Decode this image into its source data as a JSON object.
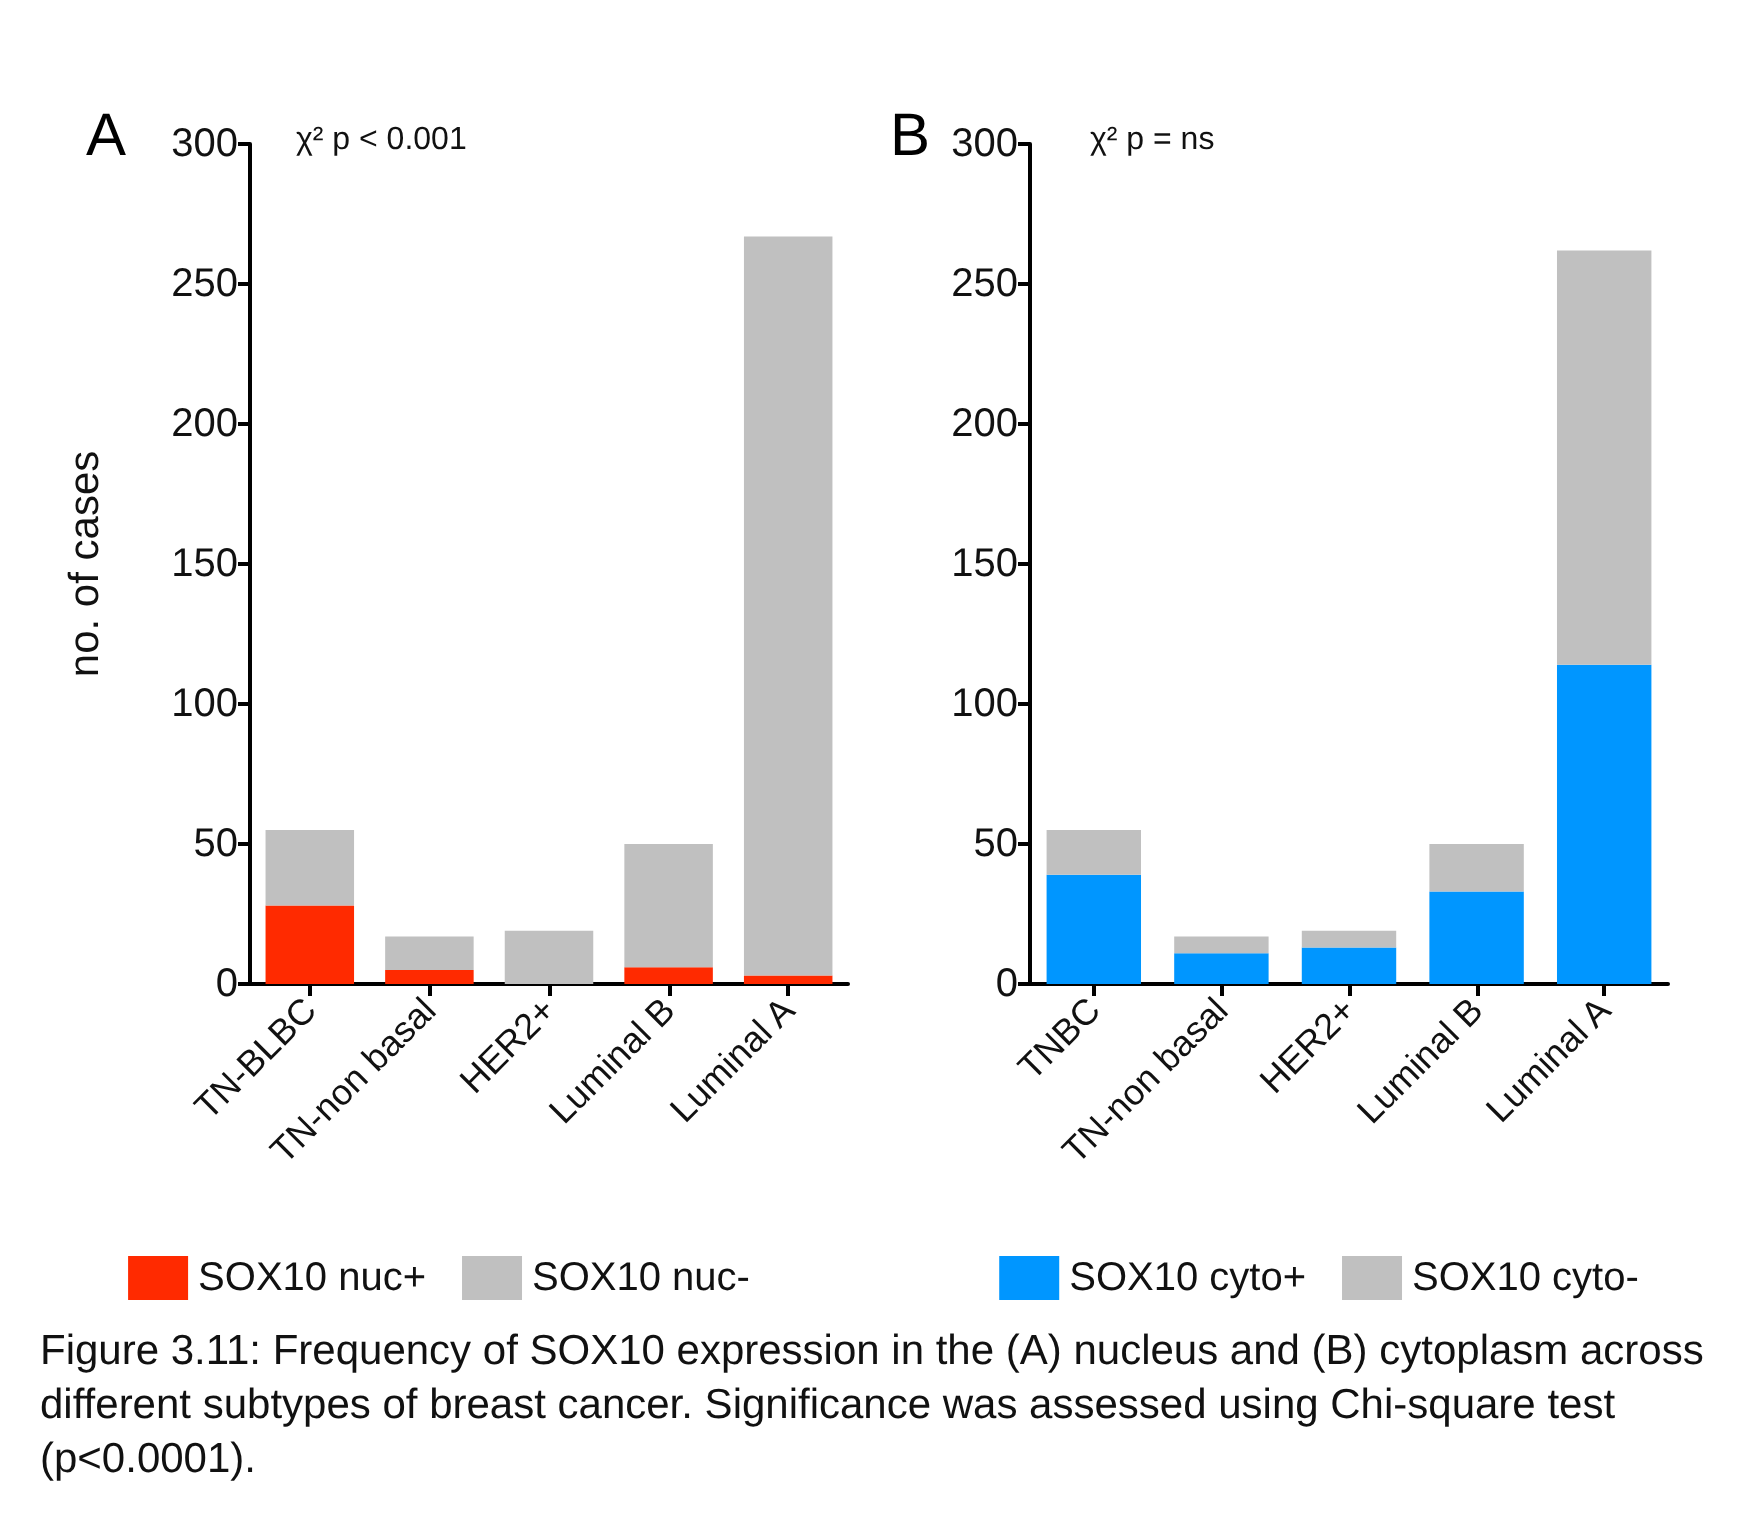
{
  "chart_data": [
    {
      "type": "bar",
      "title": "A",
      "ylabel": "no. of cases",
      "categories": [
        "TN-BLBC",
        "TN-non basal",
        "HER2+",
        "Luminal B",
        "Luminal A"
      ],
      "stacked": true,
      "series": [
        {
          "name": "SOX10 nuc+",
          "color": "#ff2a00",
          "values": [
            28,
            5,
            0,
            6,
            3
          ]
        },
        {
          "name": "SOX10 nuc-",
          "color": "#c0c0c0",
          "values": [
            27,
            12,
            19,
            44,
            264
          ]
        }
      ],
      "ylim": [
        0,
        300
      ],
      "yticks": [
        0,
        50,
        100,
        150,
        200,
        250,
        300
      ],
      "grid": false,
      "legend": "bottom",
      "annotations": [
        "χ² p < 0.001",
        "Figure 3.11: Frequency of SOX10 expression in the (A) nucleus and (B) cytoplasm across different subtypes of breast cancer. Significance was assessed using Chi-square test (p<0.0001)."
      ]
    },
    {
      "type": "bar",
      "title": "B",
      "categories": [
        "TNBC",
        "TN-non basal",
        "HER2+",
        "Luminal B",
        "Luminal A"
      ],
      "stacked": true,
      "series": [
        {
          "name": "SOX10 cyto+",
          "color": "#0096ff",
          "values": [
            39,
            11,
            13,
            33,
            114
          ]
        },
        {
          "name": "SOX10 cyto-",
          "color": "#c0c0c0",
          "values": [
            16,
            6,
            6,
            17,
            148
          ]
        }
      ],
      "ylim": [
        0,
        300
      ],
      "yticks": [
        0,
        50,
        100,
        150,
        200,
        250,
        300
      ],
      "grid": false,
      "legend": "bottom",
      "annotations": [
        "χ² p = ns"
      ]
    }
  ]
}
